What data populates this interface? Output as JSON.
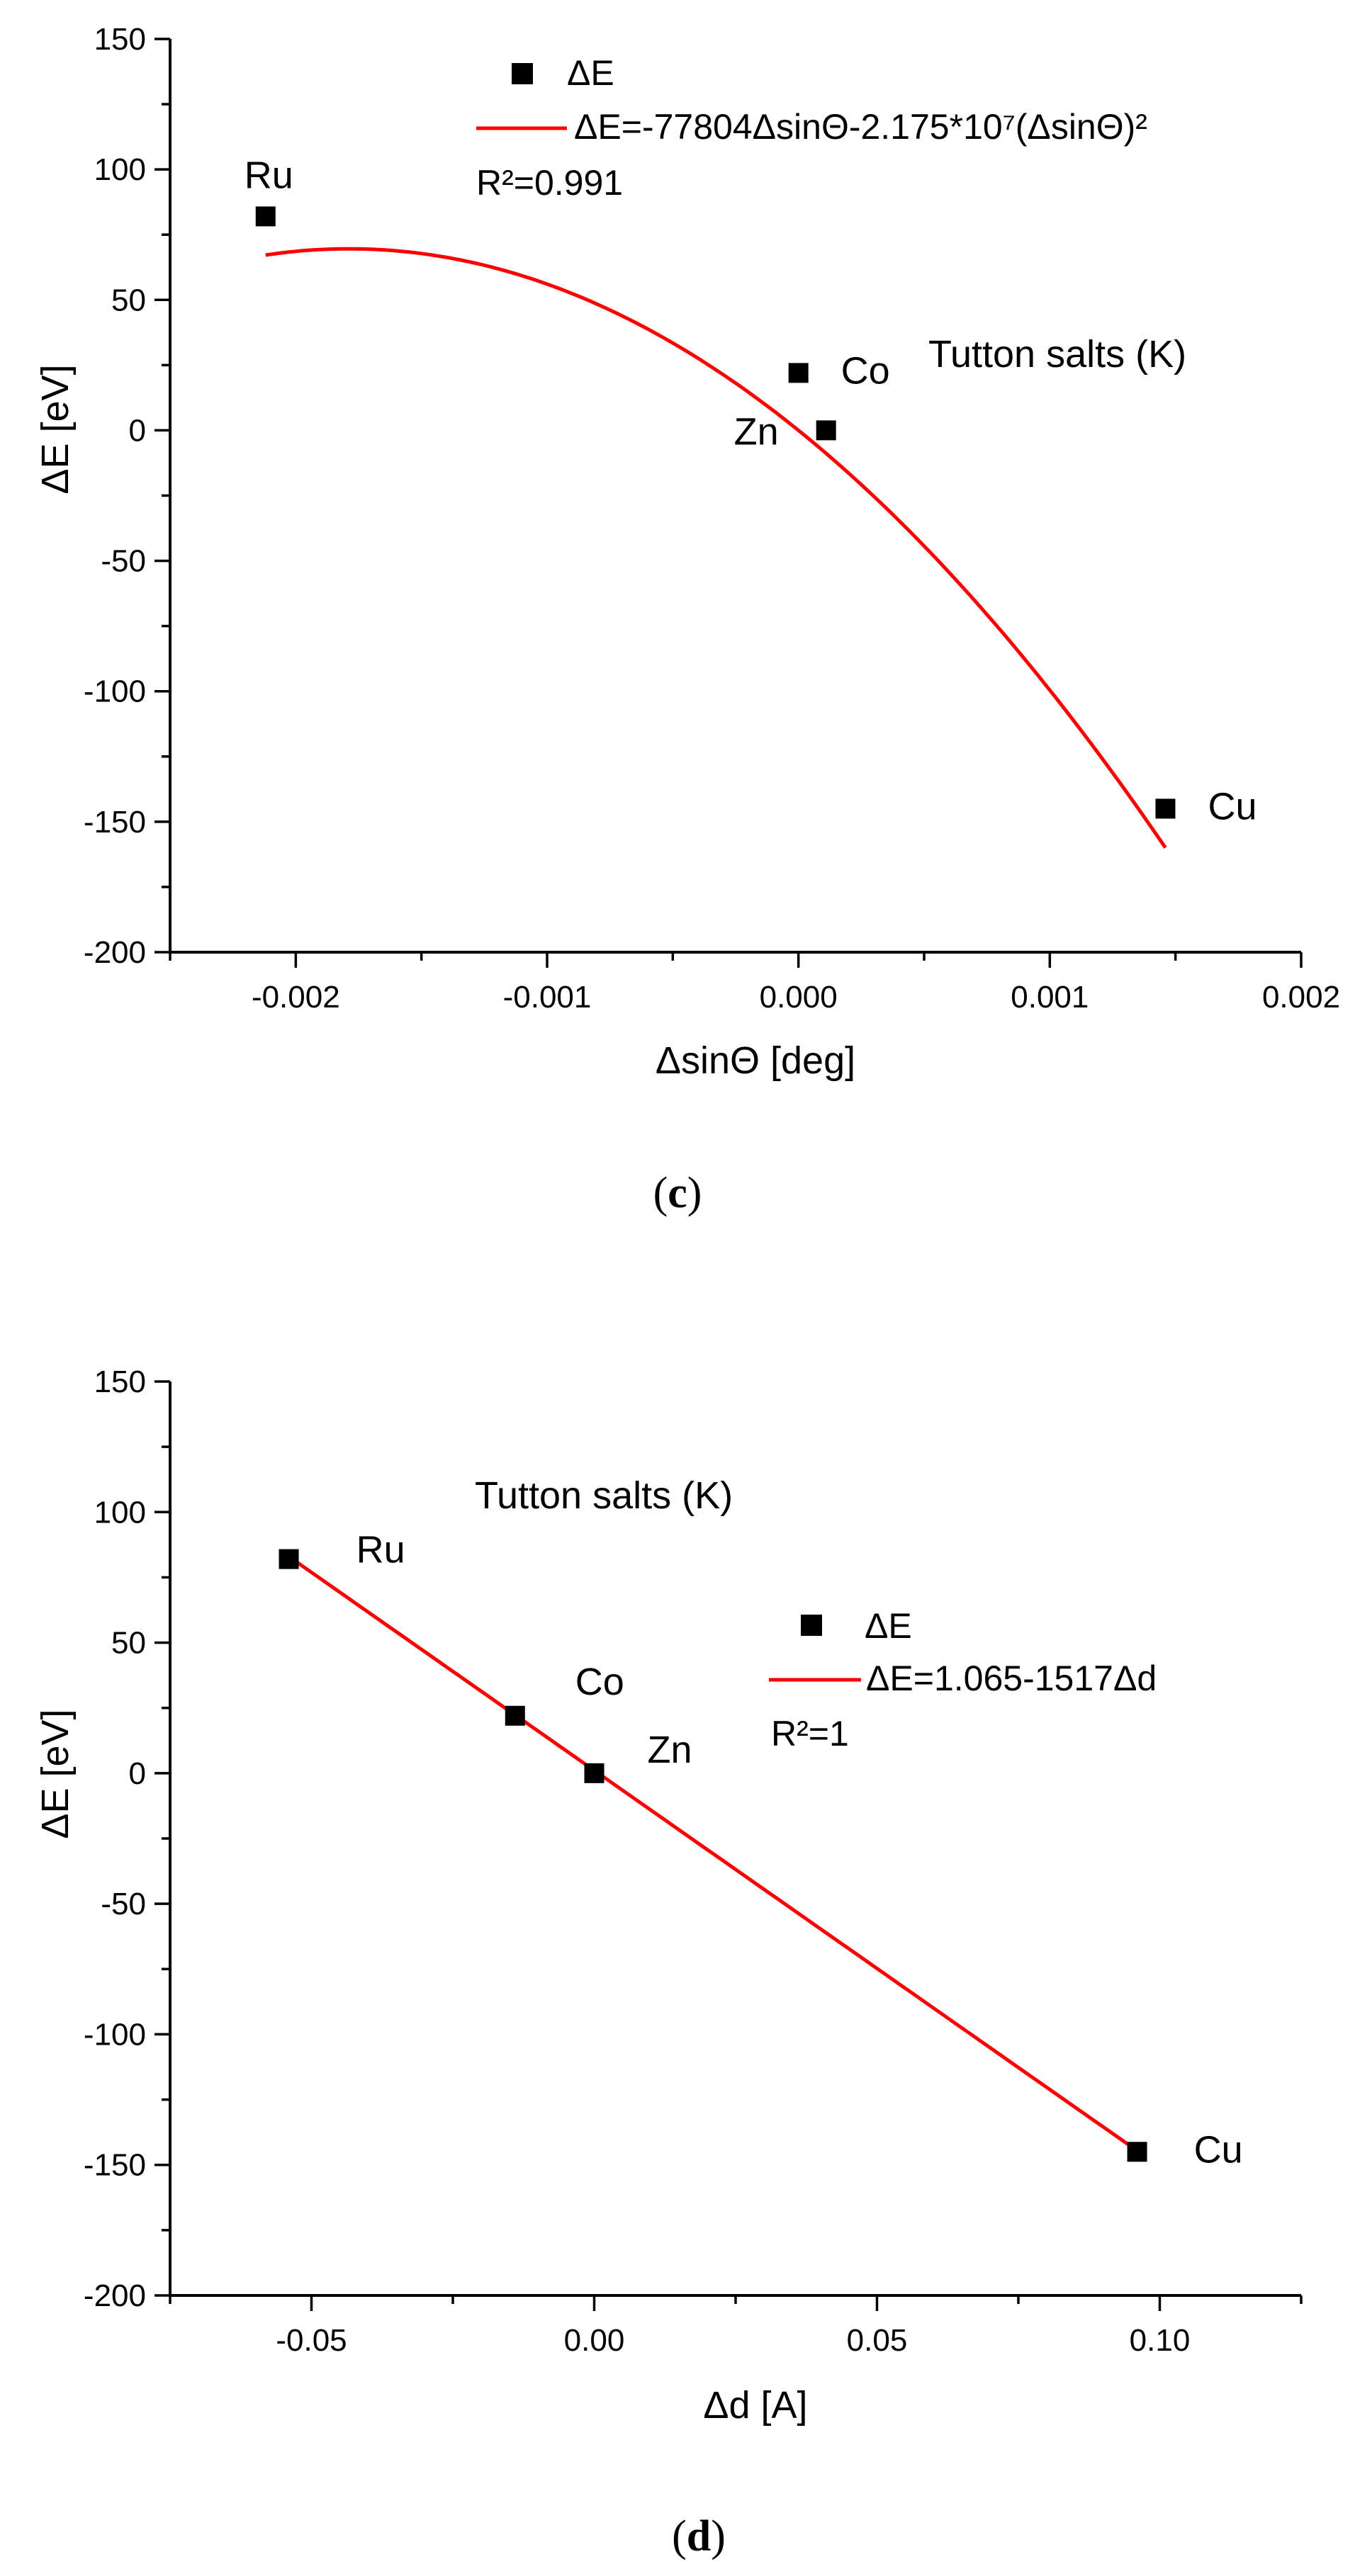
{
  "chart_data": [
    {
      "type": "scatter",
      "panel": "c",
      "caption": "c",
      "xlabel": "ΔsinΘ [deg]",
      "ylabel": "ΔE [eV]",
      "xlim": [
        -0.0025,
        0.002
      ],
      "ylim": [
        -200,
        150
      ],
      "xticks": [
        -0.002,
        -0.001,
        0.0,
        0.001,
        0.002
      ],
      "xtick_labels": [
        "-0.002",
        "-0.001",
        "0.000",
        "0.001",
        "0.002"
      ],
      "yticks": [
        -200,
        -150,
        -100,
        -50,
        0,
        50,
        100,
        150
      ],
      "ytick_labels": [
        "-200",
        "-150",
        "-100",
        "-50",
        "0",
        "50",
        "100",
        "150"
      ],
      "annotation": "Tutton salts (K)",
      "legend": {
        "placement": "top-center",
        "point_label": "ΔE",
        "fit_label": "ΔE=-77804ΔsinΘ-2.175*10⁷(ΔsinΘ)²",
        "r2_label": "R²=0.991"
      },
      "series": [
        {
          "name": "ΔE",
          "points": [
            {
              "label": "Ru",
              "x": -0.00212,
              "y": 82
            },
            {
              "label": "Co",
              "x": 0.0,
              "y": 22
            },
            {
              "label": "Zn",
              "x": 0.00011,
              "y": 0
            },
            {
              "label": "Cu",
              "x": 0.00146,
              "y": -145
            }
          ]
        }
      ],
      "fit": {
        "type": "quadratic",
        "a": -77804,
        "b": -21750000,
        "x_range": [
          -0.00212,
          0.00146
        ]
      },
      "colors": {
        "points": "#000000",
        "fit": "#ff0000"
      }
    },
    {
      "type": "scatter",
      "panel": "d",
      "caption": "d",
      "xlabel": "Δd [A]",
      "ylabel": "ΔE [eV]",
      "xlim": [
        -0.075,
        0.125
      ],
      "ylim": [
        -200,
        150
      ],
      "xticks": [
        -0.05,
        0.0,
        0.05,
        0.1
      ],
      "xtick_labels": [
        "-0.05",
        "0.00",
        "0.05",
        "0.10"
      ],
      "yticks": [
        -200,
        -150,
        -100,
        -50,
        0,
        50,
        100,
        150
      ],
      "ytick_labels": [
        "-200",
        "-150",
        "-100",
        "-50",
        "0",
        "50",
        "100",
        "150"
      ],
      "annotation": "Tutton salts (K)",
      "legend": {
        "placement": "center-right",
        "point_label": "ΔE",
        "fit_label": "ΔE=1.065-1517Δd",
        "r2_label": "R²=1"
      },
      "series": [
        {
          "name": "ΔE",
          "points": [
            {
              "label": "Ru",
              "x": -0.054,
              "y": 82
            },
            {
              "label": "Co",
              "x": -0.014,
              "y": 22
            },
            {
              "label": "Zn",
              "x": 0.0,
              "y": 0
            },
            {
              "label": "Cu",
              "x": 0.096,
              "y": -145
            }
          ]
        }
      ],
      "fit": {
        "type": "linear",
        "intercept": 1.065,
        "slope": -1517,
        "x_range": [
          -0.054,
          0.096
        ]
      },
      "colors": {
        "points": "#000000",
        "fit": "#ff0000"
      }
    }
  ]
}
